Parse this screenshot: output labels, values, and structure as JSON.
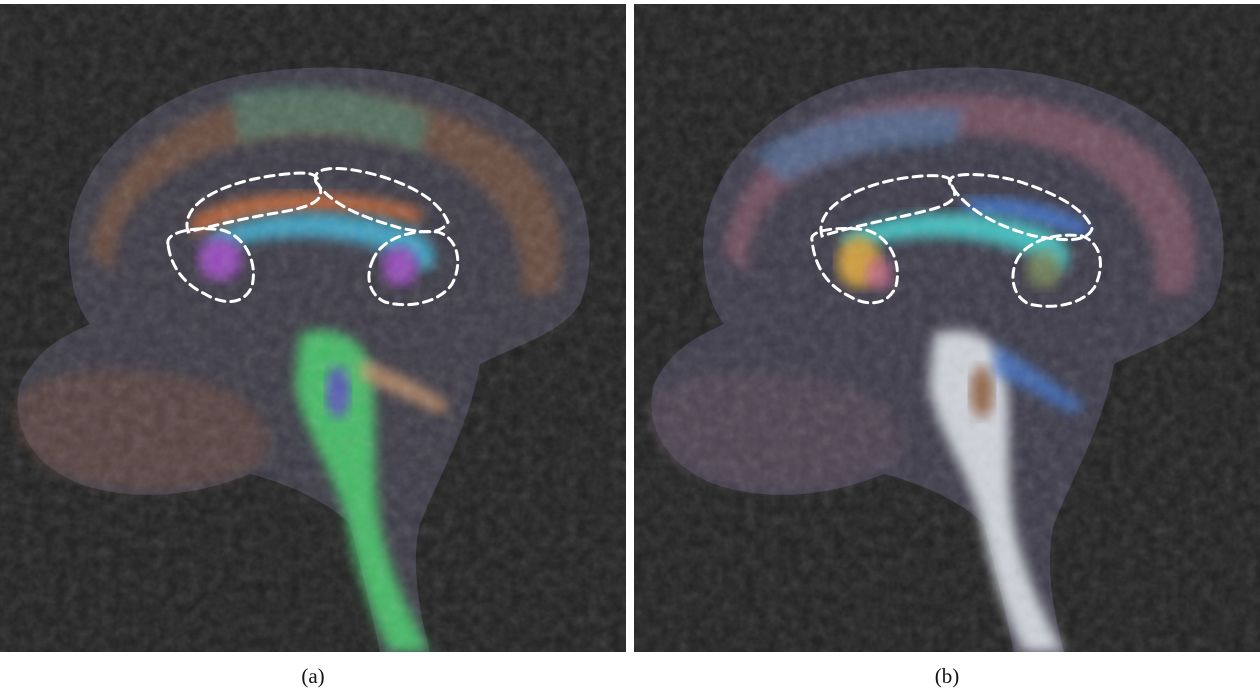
{
  "panels": [
    {
      "id": "a",
      "caption": "(a)",
      "palette": {
        "background": "#202020",
        "tissue": "#3c3a45",
        "cortex_warm": "#8a5a3a",
        "cortex_cool": "#4b7a6a",
        "callosum_band": "#3fa6c7",
        "callosum_orange": "#c2683a",
        "genu_splenium": "#9a4cc0",
        "brainstem": "#46c86a",
        "brainstem_core": "#5a4dc0"
      }
    },
    {
      "id": "b",
      "caption": "(b)",
      "palette": {
        "background": "#202020",
        "tissue": "#3c3a48",
        "cortex_warm": "#9a5f70",
        "cortex_cool": "#4a6e9a",
        "callosum_band": "#42c4c4",
        "callosum_orange": "#3f72c8",
        "genu_splenium": "#d6a23a",
        "brainstem": "#dfe3ea",
        "brainstem_core": "#8a5a3a"
      }
    }
  ],
  "roi_style": "white-dashed"
}
